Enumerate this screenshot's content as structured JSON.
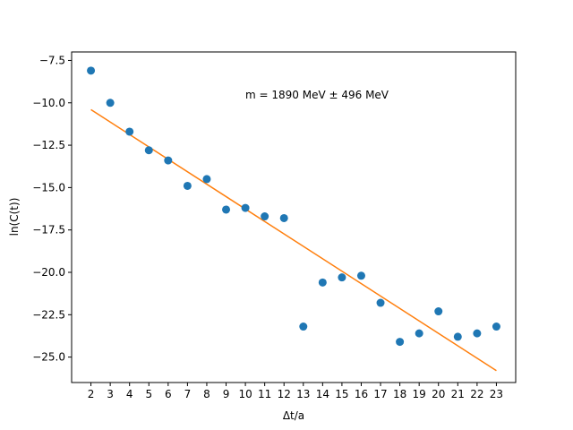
{
  "chart_data": {
    "type": "scatter",
    "xlabel": "Δt/a",
    "ylabel": "ln(C(t))",
    "annotation": "m = 1890 MeV ± 496 MeV",
    "xlim": [
      1.0,
      24.0
    ],
    "ylim": [
      -26.5,
      -7.0
    ],
    "x_ticks": [
      2,
      3,
      4,
      5,
      6,
      7,
      8,
      9,
      10,
      11,
      12,
      13,
      14,
      15,
      16,
      17,
      18,
      19,
      20,
      21,
      22,
      23
    ],
    "y_ticks": [
      -7.5,
      -10.0,
      -12.5,
      -15.0,
      -17.5,
      -20.0,
      -22.5,
      -25.0
    ],
    "y_tick_labels": [
      "−7.5",
      "−10.0",
      "−12.5",
      "−15.0",
      "−17.5",
      "−20.0",
      "−22.5",
      "−25.0"
    ],
    "grid": false,
    "colors": {
      "points": "#1f77b4",
      "fit": "#ff7f0e"
    },
    "series": [
      {
        "kind": "scatter",
        "x": [
          2,
          3,
          4,
          5,
          6,
          7,
          8,
          9,
          10,
          11,
          12,
          13,
          14,
          15,
          16,
          17,
          18,
          19,
          20,
          21,
          22,
          23
        ],
        "y": [
          -8.1,
          -10.0,
          -11.7,
          -12.8,
          -13.4,
          -14.9,
          -14.5,
          -16.3,
          -16.2,
          -16.7,
          -16.8,
          -23.2,
          -20.6,
          -20.3,
          -20.2,
          -21.8,
          -24.1,
          -23.6,
          -22.3,
          -23.8,
          -23.6,
          -23.2
        ]
      },
      {
        "kind": "line",
        "x": [
          2,
          23
        ],
        "y": [
          -10.4,
          -25.8
        ]
      }
    ]
  }
}
